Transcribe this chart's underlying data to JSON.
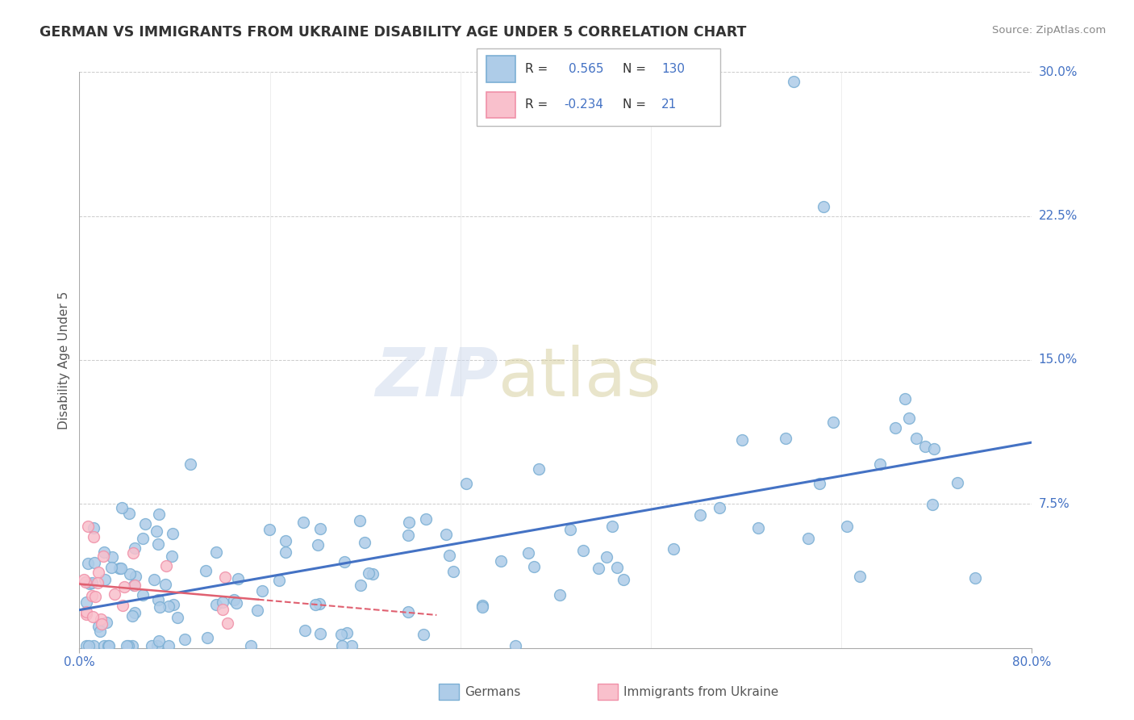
{
  "title": "GERMAN VS IMMIGRANTS FROM UKRAINE DISABILITY AGE UNDER 5 CORRELATION CHART",
  "source": "Source: ZipAtlas.com",
  "ylabel": "Disability Age Under 5",
  "xmin": 0.0,
  "xmax": 80.0,
  "ymin": 0.0,
  "ymax": 30.0,
  "yticks": [
    0.0,
    7.5,
    15.0,
    22.5,
    30.0
  ],
  "ytick_labels": [
    "",
    "7.5%",
    "15.0%",
    "22.5%",
    "30.0%"
  ],
  "blue_scatter_color": "#aecce8",
  "blue_edge_color": "#7bafd4",
  "pink_scatter_color": "#f9c0cc",
  "pink_edge_color": "#f090a8",
  "line_blue": "#4472c4",
  "line_pink": "#e06070",
  "r_blue": 0.565,
  "n_blue": 130,
  "r_pink": -0.234,
  "n_pink": 21,
  "legend_label_blue": "Germans",
  "legend_label_pink": "Immigrants from Ukraine",
  "grid_color": "#cccccc",
  "axis_label_color": "#4472c4",
  "title_color": "#333333",
  "source_color": "#888888",
  "blue_line_start_y": 0.5,
  "blue_line_end_y": 10.0,
  "pink_line_start_y": 3.0,
  "pink_line_end_y": -1.0
}
